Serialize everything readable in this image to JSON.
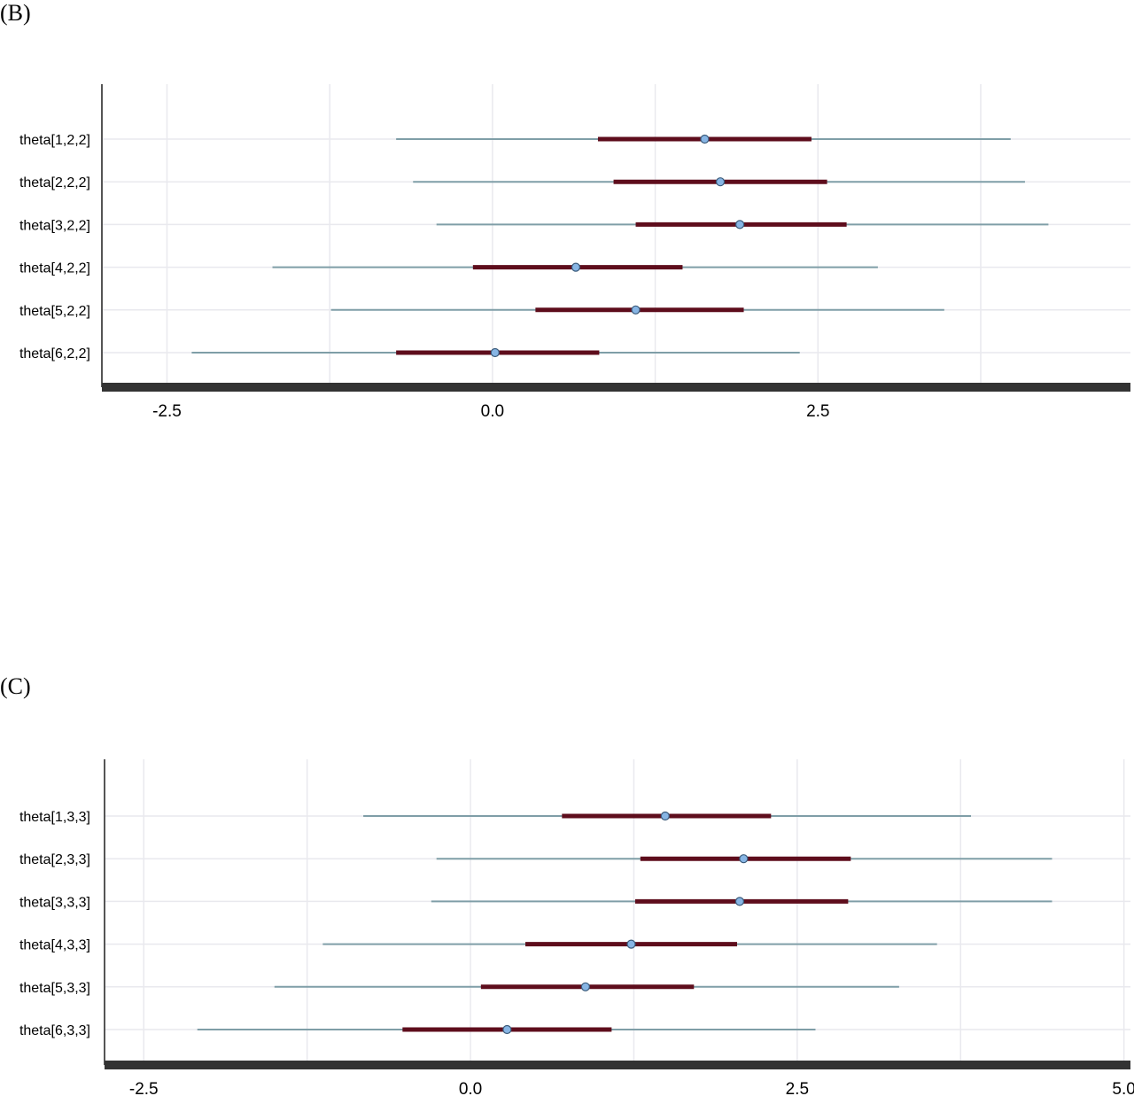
{
  "panels": [
    {
      "label": "(B)",
      "chart_data": {
        "type": "forest",
        "title": "",
        "xlabel": "",
        "ylabel": "",
        "xlim": [
          -3.0,
          4.9
        ],
        "xticks": [
          -2.5,
          0.0,
          2.5
        ],
        "xtick_labels": [
          "-2.5",
          "0.0",
          "2.5"
        ],
        "grid": true,
        "rows": [
          {
            "label": "theta[1,2,2]",
            "median": 1.63,
            "inner": [
              0.81,
              2.45
            ],
            "outer": [
              -0.74,
              3.98
            ]
          },
          {
            "label": "theta[2,2,2]",
            "median": 1.75,
            "inner": [
              0.93,
              2.57
            ],
            "outer": [
              -0.61,
              4.09
            ]
          },
          {
            "label": "theta[3,2,2]",
            "median": 1.9,
            "inner": [
              1.1,
              2.72
            ],
            "outer": [
              -0.43,
              4.27
            ]
          },
          {
            "label": "theta[4,2,2]",
            "median": 0.64,
            "inner": [
              -0.15,
              1.46
            ],
            "outer": [
              -1.69,
              2.96
            ]
          },
          {
            "label": "theta[5,2,2]",
            "median": 1.1,
            "inner": [
              0.33,
              1.93
            ],
            "outer": [
              -1.24,
              3.47
            ]
          },
          {
            "label": "theta[6,2,2]",
            "median": 0.02,
            "inner": [
              -0.74,
              0.82
            ],
            "outer": [
              -2.31,
              2.36
            ]
          }
        ]
      }
    },
    {
      "label": "(C)",
      "chart_data": {
        "type": "forest",
        "title": "",
        "xlabel": "",
        "ylabel": "",
        "xlim": [
          -2.8,
          5.05
        ],
        "xticks": [
          -2.5,
          0.0,
          2.5,
          5.0
        ],
        "xtick_labels": [
          "-2.5",
          "0.0",
          "2.5",
          "5.0"
        ],
        "grid": true,
        "rows": [
          {
            "label": "theta[1,3,3]",
            "median": 1.49,
            "inner": [
              0.7,
              2.3
            ],
            "outer": [
              -0.82,
              3.83
            ]
          },
          {
            "label": "theta[2,3,3]",
            "median": 2.09,
            "inner": [
              1.3,
              2.91
            ],
            "outer": [
              -0.26,
              4.45
            ]
          },
          {
            "label": "theta[3,3,3]",
            "median": 2.06,
            "inner": [
              1.26,
              2.89
            ],
            "outer": [
              -0.3,
              4.45
            ]
          },
          {
            "label": "theta[4,3,3]",
            "median": 1.23,
            "inner": [
              0.42,
              2.04
            ],
            "outer": [
              -1.13,
              3.57
            ]
          },
          {
            "label": "theta[5,3,3]",
            "median": 0.88,
            "inner": [
              0.08,
              1.71
            ],
            "outer": [
              -1.5,
              3.28
            ]
          },
          {
            "label": "theta[6,3,3]",
            "median": 0.28,
            "inner": [
              -0.52,
              1.08
            ],
            "outer": [
              -2.09,
              2.64
            ]
          }
        ]
      }
    }
  ]
}
